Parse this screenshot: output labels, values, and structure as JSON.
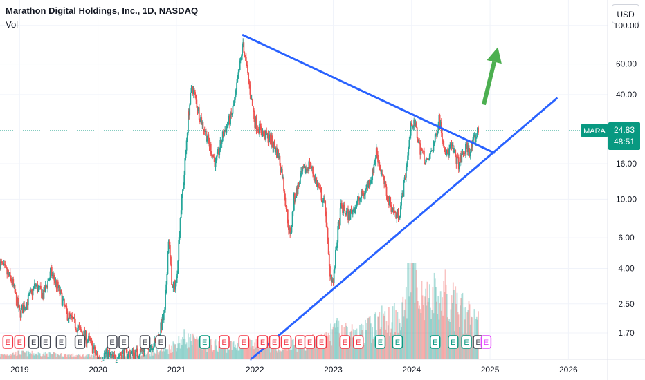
{
  "header": {
    "title": "Marathon Digital Holdings, Inc., 1D, NASDAQ",
    "indicator": "Vol",
    "currency": "USD"
  },
  "price_tag": {
    "symbol": "MARA",
    "price": "24.83",
    "countdown": "48:51"
  },
  "colors": {
    "up": "#26a69a",
    "down": "#ef5350",
    "trendline": "#2962ff",
    "arrow": "#4caf50",
    "tag": "#089981",
    "earnings_red": "#f23645",
    "earnings_gray": "#434651",
    "earnings_green": "#089981",
    "earnings_magenta": "#e040fb"
  },
  "chart_data": {
    "type": "line",
    "title": "Marathon Digital Holdings, Inc., 1D, NASDAQ",
    "y_scale": "log",
    "ylim": [
      1.2,
      140
    ],
    "xlim": [
      2018.75,
      2026.5
    ],
    "y_ticks": [
      "100.00",
      "60.00",
      "40.00",
      "16.00",
      "10.00",
      "6.00",
      "4.00",
      "2.50",
      "1.70"
    ],
    "x_ticks": [
      "2019",
      "2020",
      "2021",
      "2022",
      "2023",
      "2024",
      "2025",
      "2026"
    ],
    "last_price": 24.83,
    "price_path": [
      [
        2018.75,
        4.3
      ],
      [
        2018.9,
        3.4
      ],
      [
        2019.0,
        2.2
      ],
      [
        2019.1,
        2.6
      ],
      [
        2019.2,
        3.2
      ],
      [
        2019.3,
        2.8
      ],
      [
        2019.4,
        3.8
      ],
      [
        2019.5,
        3.0
      ],
      [
        2019.6,
        2.2
      ],
      [
        2019.75,
        1.8
      ],
      [
        2019.9,
        1.5
      ],
      [
        2020.0,
        1.2
      ],
      [
        2020.1,
        1.3
      ],
      [
        2020.2,
        1.2
      ],
      [
        2020.3,
        1.3
      ],
      [
        2020.5,
        1.3
      ],
      [
        2020.6,
        1.4
      ],
      [
        2020.75,
        1.5
      ],
      [
        2020.85,
        2.2
      ],
      [
        2020.9,
        6.0
      ],
      [
        2020.95,
        3.0
      ],
      [
        2021.0,
        3.4
      ],
      [
        2021.05,
        8.0
      ],
      [
        2021.1,
        14.0
      ],
      [
        2021.15,
        30.0
      ],
      [
        2021.2,
        45.0
      ],
      [
        2021.3,
        30.0
      ],
      [
        2021.4,
        22.0
      ],
      [
        2021.5,
        16.0
      ],
      [
        2021.6,
        24.0
      ],
      [
        2021.7,
        30.0
      ],
      [
        2021.75,
        38.0
      ],
      [
        2021.8,
        55.0
      ],
      [
        2021.85,
        80.0
      ],
      [
        2021.9,
        55.0
      ],
      [
        2022.0,
        28.0
      ],
      [
        2022.1,
        24.0
      ],
      [
        2022.2,
        22.0
      ],
      [
        2022.3,
        18.0
      ],
      [
        2022.35,
        14.0
      ],
      [
        2022.4,
        9.0
      ],
      [
        2022.45,
        6.0
      ],
      [
        2022.5,
        10.0
      ],
      [
        2022.6,
        14.0
      ],
      [
        2022.7,
        16.0
      ],
      [
        2022.8,
        12.0
      ],
      [
        2022.9,
        9.0
      ],
      [
        2022.95,
        4.0
      ],
      [
        2023.0,
        3.3
      ],
      [
        2023.05,
        6.0
      ],
      [
        2023.1,
        9.0
      ],
      [
        2023.2,
        8.0
      ],
      [
        2023.3,
        9.5
      ],
      [
        2023.4,
        11.0
      ],
      [
        2023.5,
        14.0
      ],
      [
        2023.55,
        19.0
      ],
      [
        2023.6,
        15.0
      ],
      [
        2023.7,
        10.0
      ],
      [
        2023.8,
        8.0
      ],
      [
        2023.85,
        8.5
      ],
      [
        2023.9,
        12.0
      ],
      [
        2023.95,
        18.0
      ],
      [
        2024.0,
        28.0
      ],
      [
        2024.05,
        26.0
      ],
      [
        2024.1,
        20.0
      ],
      [
        2024.2,
        16.0
      ],
      [
        2024.3,
        22.0
      ],
      [
        2024.35,
        30.0
      ],
      [
        2024.4,
        22.0
      ],
      [
        2024.45,
        18.0
      ],
      [
        2024.5,
        20.0
      ],
      [
        2024.55,
        18.0
      ],
      [
        2024.6,
        16.0
      ],
      [
        2024.7,
        20.0
      ],
      [
        2024.75,
        19.0
      ],
      [
        2024.8,
        22.0
      ],
      [
        2024.85,
        24.83
      ]
    ],
    "volume_profile": [
      [
        2018.75,
        0.04
      ],
      [
        2019.0,
        0.06
      ],
      [
        2019.3,
        0.05
      ],
      [
        2019.6,
        0.04
      ],
      [
        2020.0,
        0.03
      ],
      [
        2020.5,
        0.03
      ],
      [
        2020.9,
        0.1
      ],
      [
        2021.1,
        0.2
      ],
      [
        2021.3,
        0.15
      ],
      [
        2021.6,
        0.12
      ],
      [
        2021.9,
        0.14
      ],
      [
        2022.3,
        0.12
      ],
      [
        2022.6,
        0.15
      ],
      [
        2022.9,
        0.18
      ],
      [
        2023.0,
        0.28
      ],
      [
        2023.3,
        0.22
      ],
      [
        2023.6,
        0.35
      ],
      [
        2023.9,
        0.45
      ],
      [
        2024.0,
        0.9
      ],
      [
        2024.2,
        0.55
      ],
      [
        2024.4,
        0.6
      ],
      [
        2024.6,
        0.45
      ],
      [
        2024.85,
        0.35
      ]
    ],
    "trendlines": [
      {
        "from": [
          2021.85,
          88.0
        ],
        "to": [
          2025.05,
          18.5
        ]
      },
      {
        "from": [
          2021.95,
          1.2
        ],
        "to": [
          2025.85,
          38.0
        ]
      }
    ],
    "arrow": {
      "from": [
        2024.92,
        35.0
      ],
      "to": [
        2025.1,
        75.0
      ]
    },
    "earnings": [
      {
        "x": 2018.85,
        "label": "E",
        "kind": "red"
      },
      {
        "x": 2019.0,
        "label": "E",
        "kind": "red"
      },
      {
        "x": 2019.18,
        "label": "E",
        "kind": "gray"
      },
      {
        "x": 2019.33,
        "label": "E",
        "kind": "gray"
      },
      {
        "x": 2019.53,
        "label": "E",
        "kind": "gray"
      },
      {
        "x": 2019.77,
        "label": "E",
        "kind": "gray"
      },
      {
        "x": 2020.18,
        "label": "E",
        "kind": "gray"
      },
      {
        "x": 2020.33,
        "label": "E",
        "kind": "gray"
      },
      {
        "x": 2020.6,
        "label": "E",
        "kind": "gray"
      },
      {
        "x": 2020.8,
        "label": "E",
        "kind": "gray"
      },
      {
        "x": 2021.36,
        "label": "E",
        "kind": "green"
      },
      {
        "x": 2021.61,
        "label": "E",
        "kind": "red"
      },
      {
        "x": 2021.86,
        "label": "E",
        "kind": "red"
      },
      {
        "x": 2022.1,
        "label": "E",
        "kind": "red"
      },
      {
        "x": 2022.25,
        "label": "E",
        "kind": "red"
      },
      {
        "x": 2022.4,
        "label": "E",
        "kind": "red"
      },
      {
        "x": 2022.58,
        "label": "E",
        "kind": "red"
      },
      {
        "x": 2022.7,
        "label": "E",
        "kind": "red"
      },
      {
        "x": 2022.85,
        "label": "E",
        "kind": "red"
      },
      {
        "x": 2023.15,
        "label": "E",
        "kind": "red"
      },
      {
        "x": 2023.32,
        "label": "E",
        "kind": "red"
      },
      {
        "x": 2023.6,
        "label": "E",
        "kind": "green"
      },
      {
        "x": 2023.82,
        "label": "E",
        "kind": "green"
      },
      {
        "x": 2024.3,
        "label": "E",
        "kind": "green"
      },
      {
        "x": 2024.53,
        "label": "E",
        "kind": "green"
      },
      {
        "x": 2024.7,
        "label": "E",
        "kind": "green"
      },
      {
        "x": 2024.85,
        "label": "E",
        "kind": "gray"
      },
      {
        "x": 2024.95,
        "label": "E",
        "kind": "magenta"
      }
    ]
  }
}
